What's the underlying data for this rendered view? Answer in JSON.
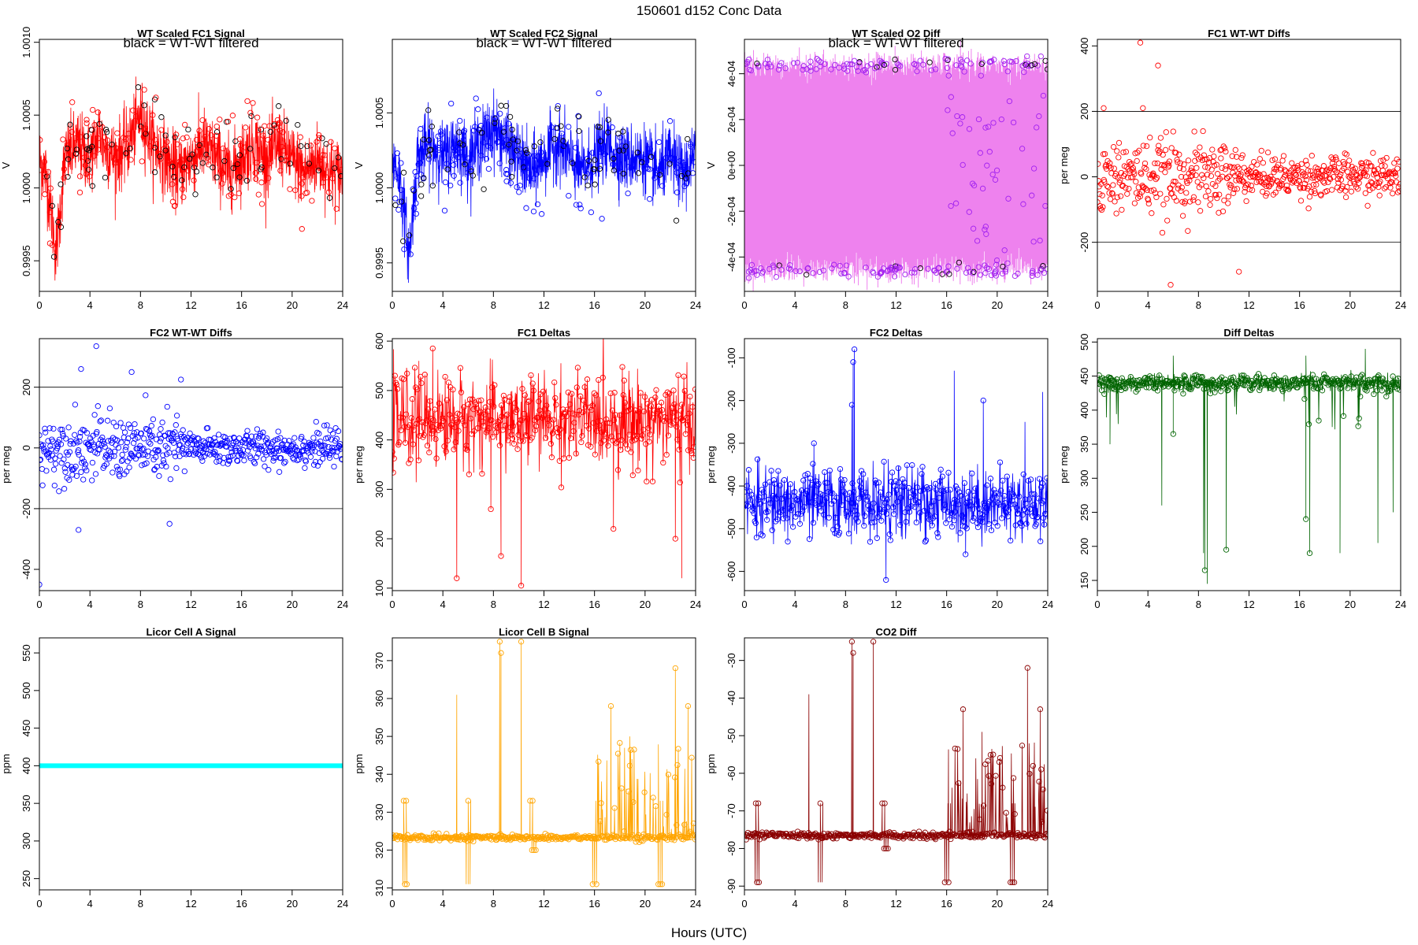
{
  "figure": {
    "title": "150601    d152    Conc Data",
    "xlabel": "Hours (UTC)"
  },
  "colors": {
    "axis": "#000000",
    "black_overlay": "#000000"
  },
  "chart_data": [
    {
      "id": "p1",
      "type": "line",
      "title": "WT Scaled FC1 Signal",
      "annotation": "black = WT-WT filtered",
      "ylabel": "V",
      "xlim": [
        0,
        24
      ],
      "ylim": [
        0.99929,
        1.00102
      ],
      "xticks": [
        0,
        4,
        8,
        12,
        16,
        20,
        24
      ],
      "yticks": [
        0.9995,
        1.0,
        1.0005,
        1.001
      ],
      "ytick_labels": [
        "0.9995",
        "1.0000",
        "1.0005",
        "1.0010"
      ],
      "color": "#ff0000",
      "series": [
        {
          "name": "FC1 signal",
          "x": [
            0,
            0.5,
            1,
            1.3,
            1.6,
            2,
            3,
            4,
            4.8,
            5,
            6,
            7,
            8,
            9,
            10,
            11,
            12,
            13,
            14,
            15,
            16,
            17,
            18,
            19,
            20,
            21,
            22,
            23,
            24
          ],
          "values": [
            1.0002,
            1.0001,
            0.9998,
            0.99955,
            0.9998,
            1.0002,
            1.0003,
            1.0002,
            1.0004,
            1.0003,
            1.0002,
            1.0003,
            1.0005,
            1.0003,
            1.0002,
            1.0001,
            1.0002,
            1.0003,
            1.0002,
            1.0001,
            1.0002,
            1.0003,
            1.0002,
            1.0003,
            1.0002,
            1.0001,
            1.0002,
            1.0001,
            1.0001
          ],
          "band": 0.00022
        }
      ]
    },
    {
      "id": "p2",
      "type": "line",
      "title": "WT Scaled FC2 Signal",
      "annotation": "black = WT-WT filtered",
      "ylabel": "V",
      "xlim": [
        0,
        24
      ],
      "ylim": [
        0.99931,
        1.00099
      ],
      "xticks": [
        0,
        4,
        8,
        12,
        16,
        20,
        24
      ],
      "yticks": [
        0.9995,
        1.0,
        1.0005
      ],
      "ytick_labels": [
        "0.9995",
        "1.0000",
        "1.0005"
      ],
      "color": "#0000ff",
      "series": [
        {
          "name": "FC2 signal",
          "x": [
            0,
            0.5,
            1,
            1.3,
            1.6,
            2,
            3,
            4,
            5,
            6,
            7,
            8,
            9,
            10,
            11,
            12,
            13,
            14,
            15,
            16,
            17,
            18,
            19,
            20,
            21,
            22,
            23,
            24
          ],
          "values": [
            1.0002,
            1.0001,
            0.9998,
            0.99955,
            0.9998,
            1.0002,
            1.0003,
            1.0002,
            1.0003,
            1.0002,
            1.0003,
            1.0004,
            1.0003,
            1.0002,
            1.0001,
            1.0002,
            1.0003,
            1.0002,
            1.0001,
            1.0002,
            1.0003,
            1.0002,
            1.0002,
            1.0002,
            1.0001,
            1.0002,
            1.0001,
            1.0002
          ],
          "band": 0.0002
        }
      ]
    },
    {
      "id": "p3",
      "type": "line",
      "title": "WT Scaled O2 Diff",
      "annotation": "black = WT-WT filtered",
      "ylabel": "V",
      "xlim": [
        0,
        24
      ],
      "ylim": [
        -0.00055,
        0.00055
      ],
      "xticks": [
        0,
        4,
        8,
        12,
        16,
        20,
        24
      ],
      "yticks": [
        -0.0004,
        -0.0002,
        0,
        0.0002,
        0.0004
      ],
      "ytick_labels": [
        "-4e-04",
        "-2e-04",
        "0e+00",
        "2e-04",
        "4e-04"
      ],
      "color": "#ee82ee",
      "marker_color": "#a020f0",
      "series": [
        {
          "name": "upper",
          "value": 0.00044
        },
        {
          "name": "lower",
          "value": -0.00046
        }
      ]
    },
    {
      "id": "p4",
      "type": "scatter",
      "title": "FC1 WT-WT Diffs",
      "ylabel": "per meg",
      "xlim": [
        0,
        24
      ],
      "ylim": [
        -350,
        420
      ],
      "xticks": [
        0,
        4,
        8,
        12,
        16,
        20,
        24
      ],
      "yticks": [
        -200,
        0,
        200,
        400
      ],
      "ytick_labels": [
        "-200",
        "0",
        "200",
        "400"
      ],
      "hlines": [
        200,
        -200
      ],
      "color": "#ff0000",
      "series": [
        {
          "name": "FC1 WT-WT",
          "sd": 75,
          "outliers": [
            [
              3.4,
              410
            ],
            [
              4.8,
              340
            ],
            [
              5.8,
              -330
            ],
            [
              11.2,
              -290
            ],
            [
              0.5,
              210
            ],
            [
              3.6,
              210
            ]
          ]
        }
      ]
    },
    {
      "id": "p5",
      "type": "scatter",
      "title": "FC2 WT-WT Diffs",
      "ylabel": "per meg",
      "xlim": [
        0,
        24
      ],
      "ylim": [
        -470,
        360
      ],
      "xticks": [
        0,
        4,
        8,
        12,
        16,
        20,
        24
      ],
      "yticks": [
        -400,
        -200,
        0,
        200
      ],
      "ytick_labels": [
        "-400",
        "-200",
        "0",
        "200"
      ],
      "hlines": [
        200,
        -200
      ],
      "color": "#0000ff",
      "series": [
        {
          "name": "FC2 WT-WT",
          "sd": 70,
          "outliers": [
            [
              0,
              -450
            ],
            [
              4.5,
              335
            ],
            [
              3.3,
              260
            ],
            [
              7.3,
              250
            ],
            [
              10.3,
              -250
            ],
            [
              3.1,
              -270
            ],
            [
              11.2,
              225
            ]
          ]
        }
      ]
    },
    {
      "id": "p6",
      "type": "line",
      "title": "FC1 Deltas",
      "ylabel": "per meg",
      "xlim": [
        0,
        24
      ],
      "ylim": [
        95,
        605
      ],
      "xticks": [
        0,
        4,
        8,
        12,
        16,
        20,
        24
      ],
      "yticks": [
        100,
        200,
        300,
        400,
        500,
        600
      ],
      "ytick_labels": [
        "100",
        "200",
        "300",
        "400",
        "500",
        "600"
      ],
      "color": "#ff0000",
      "series": [
        {
          "name": "FC1 delta",
          "base": 440,
          "noise": 45,
          "spikes": [
            [
              5.1,
              120
            ],
            [
              8.6,
              165
            ],
            [
              10.2,
              105
            ],
            [
              22.9,
              120
            ],
            [
              2.1,
              560
            ],
            [
              3.2,
              585
            ],
            [
              7.8,
              260
            ],
            [
              17.5,
              220
            ],
            [
              22.4,
              200
            ]
          ]
        }
      ]
    },
    {
      "id": "p7",
      "type": "line",
      "title": "FC2 Deltas",
      "ylabel": "per meg",
      "xlim": [
        0,
        24
      ],
      "ylim": [
        -645,
        -55
      ],
      "xticks": [
        0,
        4,
        8,
        12,
        16,
        20,
        24
      ],
      "yticks": [
        -600,
        -500,
        -400,
        -300,
        -200,
        -100
      ],
      "ytick_labels": [
        "-600",
        "-500",
        "-400",
        "-300",
        "-200",
        "-100"
      ],
      "color": "#0000ff",
      "series": [
        {
          "name": "FC2 delta",
          "base": -440,
          "noise": 40,
          "spikes": [
            [
              8.7,
              -80
            ],
            [
              8.6,
              -110
            ],
            [
              8.5,
              -210
            ],
            [
              11.2,
              -620
            ],
            [
              18.9,
              -200
            ],
            [
              16.6,
              -130
            ],
            [
              22.2,
              -250
            ],
            [
              23.6,
              -180
            ],
            [
              17.5,
              -560
            ],
            [
              5.5,
              -300
            ]
          ]
        }
      ]
    },
    {
      "id": "p8",
      "type": "line",
      "title": "Diff Deltas",
      "ylabel": "per meg",
      "xlim": [
        0,
        24
      ],
      "ylim": [
        135,
        505
      ],
      "xticks": [
        0,
        4,
        8,
        12,
        16,
        20,
        24
      ],
      "yticks": [
        150,
        200,
        250,
        300,
        350,
        400,
        450,
        500
      ],
      "ytick_labels": [
        "150",
        "200",
        "250",
        "300",
        "350",
        "400",
        "450",
        "500"
      ],
      "color": "#006400",
      "series": [
        {
          "name": "Diff delta",
          "base": 440,
          "noise": 6,
          "spikes": [
            [
              8.7,
              145
            ],
            [
              8.5,
              165
            ],
            [
              8.4,
              190
            ],
            [
              10.2,
              195
            ],
            [
              5.1,
              260
            ],
            [
              1.0,
              350
            ],
            [
              6.0,
              365
            ],
            [
              16.5,
              240
            ],
            [
              16.8,
              190
            ],
            [
              19.2,
              190
            ],
            [
              22.2,
              205
            ],
            [
              23.4,
              250
            ],
            [
              20.8,
              420
            ],
            [
              21.2,
              490
            ],
            [
              6.0,
              480
            ],
            [
              16.5,
              480
            ]
          ]
        }
      ]
    },
    {
      "id": "p9",
      "type": "line",
      "title": "Licor Cell A Signal",
      "ylabel": "ppm",
      "xlim": [
        0,
        24
      ],
      "ylim": [
        235,
        570
      ],
      "xticks": [
        0,
        4,
        8,
        12,
        16,
        20,
        24
      ],
      "yticks": [
        250,
        300,
        350,
        400,
        450,
        500,
        550
      ],
      "ytick_labels": [
        "250",
        "300",
        "350",
        "400",
        "450",
        "500",
        "550"
      ],
      "color": "#00ffff",
      "series": [
        {
          "name": "Cell A",
          "x": [
            0,
            24
          ],
          "values": [
            400,
            400
          ]
        }
      ]
    },
    {
      "id": "p10",
      "type": "line",
      "title": "Licor Cell B Signal",
      "ylabel": "ppm",
      "xlim": [
        0,
        24
      ],
      "ylim": [
        309.5,
        376
      ],
      "xticks": [
        0,
        4,
        8,
        12,
        16,
        20,
        24
      ],
      "yticks": [
        310,
        320,
        330,
        340,
        350,
        360,
        370
      ],
      "ytick_labels": [
        "310",
        "320",
        "330",
        "340",
        "350",
        "360",
        "370"
      ],
      "color": "#ffa500",
      "series": [
        {
          "name": "Cell B",
          "base": 323.3,
          "noise": 0.4,
          "spikes": [
            [
              8.5,
              375
            ],
            [
              8.6,
              372
            ],
            [
              10.2,
              375
            ],
            [
              5.1,
              361
            ],
            [
              17.3,
              358
            ],
            [
              18.8,
              350
            ],
            [
              23.4,
              358
            ],
            [
              22.4,
              368
            ]
          ],
          "dips": [
            [
              1.0,
              311
            ],
            [
              6.0,
              311
            ],
            [
              11.2,
              320
            ],
            [
              16.0,
              311
            ],
            [
              21.2,
              311
            ]
          ],
          "plateaus": [
            [
              1.0,
              333
            ],
            [
              6.1,
              333
            ],
            [
              11.0,
              333
            ],
            [
              16.2,
              333
            ],
            [
              21.3,
              333
            ]
          ]
        }
      ]
    },
    {
      "id": "p11",
      "type": "line",
      "title": "CO2 Diff",
      "ylabel": "ppm",
      "xlim": [
        0,
        24
      ],
      "ylim": [
        -91,
        -24
      ],
      "xticks": [
        0,
        4,
        8,
        12,
        16,
        20,
        24
      ],
      "yticks": [
        -90,
        -80,
        -70,
        -60,
        -50,
        -40,
        -30
      ],
      "ytick_labels": [
        "-90",
        "-80",
        "-70",
        "-60",
        "-50",
        "-40",
        "-30"
      ],
      "color": "#8b0000",
      "series": [
        {
          "name": "CO2 diff",
          "base": -76.5,
          "noise": 0.4,
          "spikes": [
            [
              8.5,
              -25
            ],
            [
              8.6,
              -28
            ],
            [
              10.2,
              -25
            ],
            [
              5.1,
              -39
            ],
            [
              17.3,
              -43
            ],
            [
              18.8,
              -49
            ],
            [
              22.4,
              -32
            ],
            [
              23.4,
              -43
            ]
          ],
          "dips": [
            [
              1.0,
              -89
            ],
            [
              6.0,
              -89
            ],
            [
              11.2,
              -80
            ],
            [
              16.0,
              -89
            ],
            [
              21.2,
              -89
            ]
          ],
          "plateaus": [
            [
              1.0,
              -68
            ],
            [
              6.1,
              -68
            ],
            [
              11.0,
              -68
            ],
            [
              16.2,
              -68
            ],
            [
              21.3,
              -68
            ]
          ]
        }
      ]
    }
  ]
}
